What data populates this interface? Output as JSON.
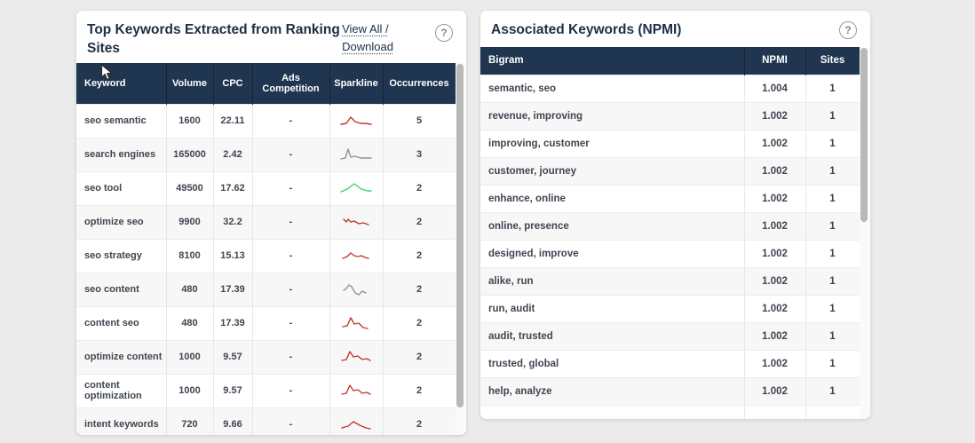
{
  "colors": {
    "page_background": "#ebebeb",
    "panel_background": "#ffffff",
    "table_header_background": "#1f3550",
    "title_text": "#1d2f45",
    "cell_text": "#3f4650",
    "sparkline_red": "#c0392b",
    "sparkline_gray": "#8e9398",
    "sparkline_green": "#3ecf6e"
  },
  "left_panel": {
    "title": "Top Keywords Extracted from Ranking Sites",
    "link_label": "View All / Download",
    "help_glyph": "?",
    "table": {
      "headers": [
        "Keyword",
        "Volume",
        "CPC",
        "Ads Competition",
        "Sparkline",
        "Occurrences"
      ],
      "rows": [
        {
          "keyword": "seo semantic",
          "volume": "1600",
          "cpc": "22.11",
          "ads_competition": "-",
          "occurrences": "5",
          "spark_color": "#c0392b",
          "spark": [
            [
              3,
              13
            ],
            [
              9,
              12
            ],
            [
              14,
              5
            ],
            [
              19,
              10
            ],
            [
              25,
              12
            ],
            [
              31,
              12
            ],
            [
              37,
              13
            ]
          ]
        },
        {
          "keyword": "search engines",
          "volume": "165000",
          "cpc": "2.42",
          "ads_competition": "-",
          "occurrences": "3",
          "spark_color": "#8e9398",
          "spark": [
            [
              3,
              14
            ],
            [
              8,
              13
            ],
            [
              11,
              3
            ],
            [
              14,
              12
            ],
            [
              19,
              11
            ],
            [
              25,
              13
            ],
            [
              31,
              13
            ],
            [
              37,
              13
            ]
          ]
        },
        {
          "keyword": "seo tool",
          "volume": "49500",
          "cpc": "17.62",
          "ads_competition": "-",
          "occurrences": "2",
          "spark_color": "#3ecf6e",
          "spark": [
            [
              3,
              13
            ],
            [
              10,
              10
            ],
            [
              18,
              4
            ],
            [
              26,
              10
            ],
            [
              33,
              12
            ],
            [
              37,
              12
            ]
          ]
        },
        {
          "keyword": "optimize seo",
          "volume": "9900",
          "cpc": "32.2",
          "ads_competition": "-",
          "occurrences": "2",
          "spark_color": "#c0392b",
          "spark": [
            [
              6,
              6
            ],
            [
              9,
              9
            ],
            [
              11,
              6
            ],
            [
              14,
              9
            ],
            [
              18,
              8
            ],
            [
              23,
              11
            ],
            [
              28,
              10
            ],
            [
              34,
              12
            ]
          ]
        },
        {
          "keyword": "seo strategy",
          "volume": "8100",
          "cpc": "15.13",
          "ads_competition": "-",
          "occurrences": "2",
          "spark_color": "#c0392b",
          "spark": [
            [
              5,
              12
            ],
            [
              10,
              10
            ],
            [
              14,
              6
            ],
            [
              18,
              9
            ],
            [
              22,
              10
            ],
            [
              26,
              9
            ],
            [
              30,
              11
            ],
            [
              34,
              12
            ]
          ]
        },
        {
          "keyword": "seo content",
          "volume": "480",
          "cpc": "17.39",
          "ads_competition": "-",
          "occurrences": "2",
          "spark_color": "#8e9398",
          "spark": [
            [
              6,
              10
            ],
            [
              9,
              8
            ],
            [
              12,
              4
            ],
            [
              15,
              6
            ],
            [
              19,
              13
            ],
            [
              23,
              15
            ],
            [
              27,
              11
            ],
            [
              31,
              13
            ]
          ]
        },
        {
          "keyword": "content seo",
          "volume": "480",
          "cpc": "17.39",
          "ads_competition": "-",
          "occurrences": "2",
          "spark_color": "#c0392b",
          "spark": [
            [
              5,
              13
            ],
            [
              10,
              12
            ],
            [
              14,
              3
            ],
            [
              18,
              10
            ],
            [
              23,
              9
            ],
            [
              28,
              14
            ],
            [
              33,
              15
            ]
          ]
        },
        {
          "keyword": "optimize content",
          "volume": "1000",
          "cpc": "9.57",
          "ads_competition": "-",
          "occurrences": "2",
          "spark_color": "#c0392b",
          "spark": [
            [
              4,
              13
            ],
            [
              9,
              12
            ],
            [
              13,
              3
            ],
            [
              17,
              9
            ],
            [
              22,
              8
            ],
            [
              27,
              12
            ],
            [
              32,
              11
            ],
            [
              36,
              13
            ]
          ]
        },
        {
          "keyword": "content optimization",
          "volume": "1000",
          "cpc": "9.57",
          "ads_competition": "-",
          "occurrences": "2",
          "spark_color": "#c0392b",
          "spark": [
            [
              4,
              13
            ],
            [
              9,
              12
            ],
            [
              13,
              3
            ],
            [
              17,
              9
            ],
            [
              22,
              8
            ],
            [
              27,
              12
            ],
            [
              32,
              11
            ],
            [
              36,
              13
            ]
          ]
        },
        {
          "keyword": "intent keywords",
          "volume": "720",
          "cpc": "9.66",
          "ads_competition": "-",
          "occurrences": "2",
          "spark_color": "#c0392b",
          "spark": [
            [
              4,
              13
            ],
            [
              11,
              11
            ],
            [
              17,
              6
            ],
            [
              24,
              10
            ],
            [
              31,
              13
            ],
            [
              36,
              14
            ]
          ]
        }
      ]
    }
  },
  "right_panel": {
    "title": "Associated Keywords (NPMI)",
    "help_glyph": "?",
    "table": {
      "headers": [
        "Bigram",
        "NPMI",
        "Sites"
      ],
      "rows": [
        {
          "bigram": "semantic, seo",
          "npmi": "1.004",
          "sites": "1"
        },
        {
          "bigram": "revenue, improving",
          "npmi": "1.002",
          "sites": "1"
        },
        {
          "bigram": "improving, customer",
          "npmi": "1.002",
          "sites": "1"
        },
        {
          "bigram": "customer, journey",
          "npmi": "1.002",
          "sites": "1"
        },
        {
          "bigram": "enhance, online",
          "npmi": "1.002",
          "sites": "1"
        },
        {
          "bigram": "online, presence",
          "npmi": "1.002",
          "sites": "1"
        },
        {
          "bigram": "designed, improve",
          "npmi": "1.002",
          "sites": "1"
        },
        {
          "bigram": "alike, run",
          "npmi": "1.002",
          "sites": "1"
        },
        {
          "bigram": "run, audit",
          "npmi": "1.002",
          "sites": "1"
        },
        {
          "bigram": "audit, trusted",
          "npmi": "1.002",
          "sites": "1"
        },
        {
          "bigram": "trusted, global",
          "npmi": "1.002",
          "sites": "1"
        },
        {
          "bigram": "help, analyze",
          "npmi": "1.002",
          "sites": "1"
        },
        {
          "bigram": "",
          "npmi": "",
          "sites": ""
        }
      ]
    }
  }
}
